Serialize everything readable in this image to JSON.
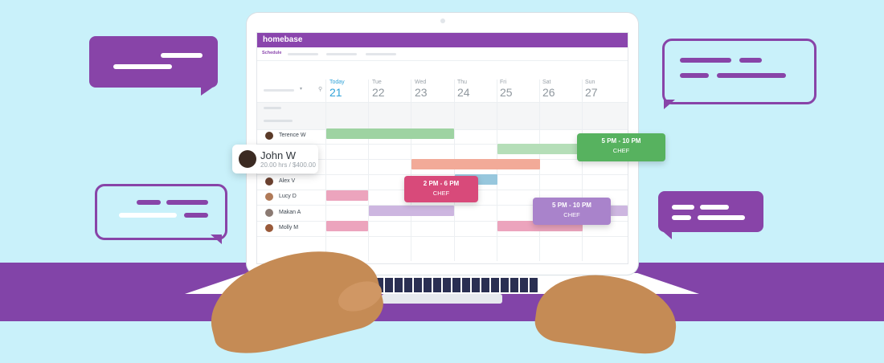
{
  "app": {
    "brand": "homebase",
    "tab": "Schedule"
  },
  "week": [
    {
      "name": "Today",
      "num": "21"
    },
    {
      "name": "Tue",
      "num": "22"
    },
    {
      "name": "Wed",
      "num": "23"
    },
    {
      "name": "Thu",
      "num": "24"
    },
    {
      "name": "Fri",
      "num": "25"
    },
    {
      "name": "Sat",
      "num": "26"
    },
    {
      "name": "Sun",
      "num": "27"
    }
  ],
  "employees": [
    {
      "name": "Terence W"
    },
    {
      "name": "Alex V"
    },
    {
      "name": "Lucy D"
    },
    {
      "name": "Makan A"
    },
    {
      "name": "Molly M"
    }
  ],
  "employee_card": {
    "name": "John W",
    "summary": "20.00 hrs / $400.00"
  },
  "shift_popups": [
    {
      "time": "5 PM - 10 PM",
      "role": "CHEF",
      "color": "#57b25f"
    },
    {
      "time": "2 PM - 6 PM",
      "role": "CHEF",
      "color": "#d84a7a"
    },
    {
      "time": "5 PM - 10 PM",
      "role": "CHEF",
      "color": "#a983cb"
    }
  ],
  "colors": {
    "brand_purple": "#8a45ad",
    "sky": "#c9f1fa",
    "today_blue": "#2fa2d8"
  }
}
